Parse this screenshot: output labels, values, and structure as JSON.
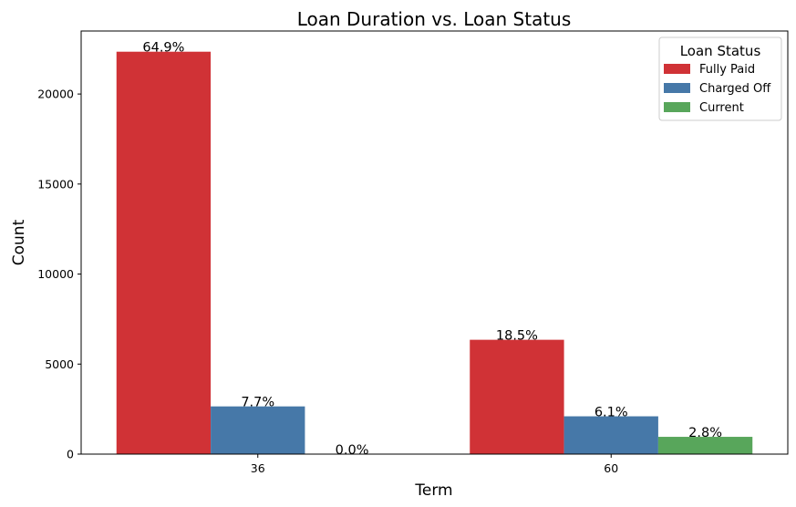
{
  "chart_data": {
    "type": "bar",
    "title": "Loan Duration vs. Loan Status",
    "xlabel": "Term",
    "ylabel": "Count",
    "categories": [
      "36",
      "60"
    ],
    "ylim": [
      0,
      23500
    ],
    "yticks": [
      0,
      5000,
      10000,
      15000,
      20000
    ],
    "grid": false,
    "series": [
      {
        "name": "Fully Paid",
        "values": [
          22350,
          6350
        ],
        "labels": [
          "64.9%",
          "18.5%"
        ],
        "color": "#d03236"
      },
      {
        "name": "Charged Off",
        "values": [
          2650,
          2100
        ],
        "labels": [
          "7.7%",
          "6.1%"
        ],
        "color": "#4678a8"
      },
      {
        "name": "Current",
        "values": [
          0,
          960
        ],
        "labels": [
          "0.0%",
          "2.8%"
        ],
        "color": "#58a65b"
      }
    ],
    "legend": {
      "title": "Loan Status",
      "position": "top-right"
    }
  }
}
